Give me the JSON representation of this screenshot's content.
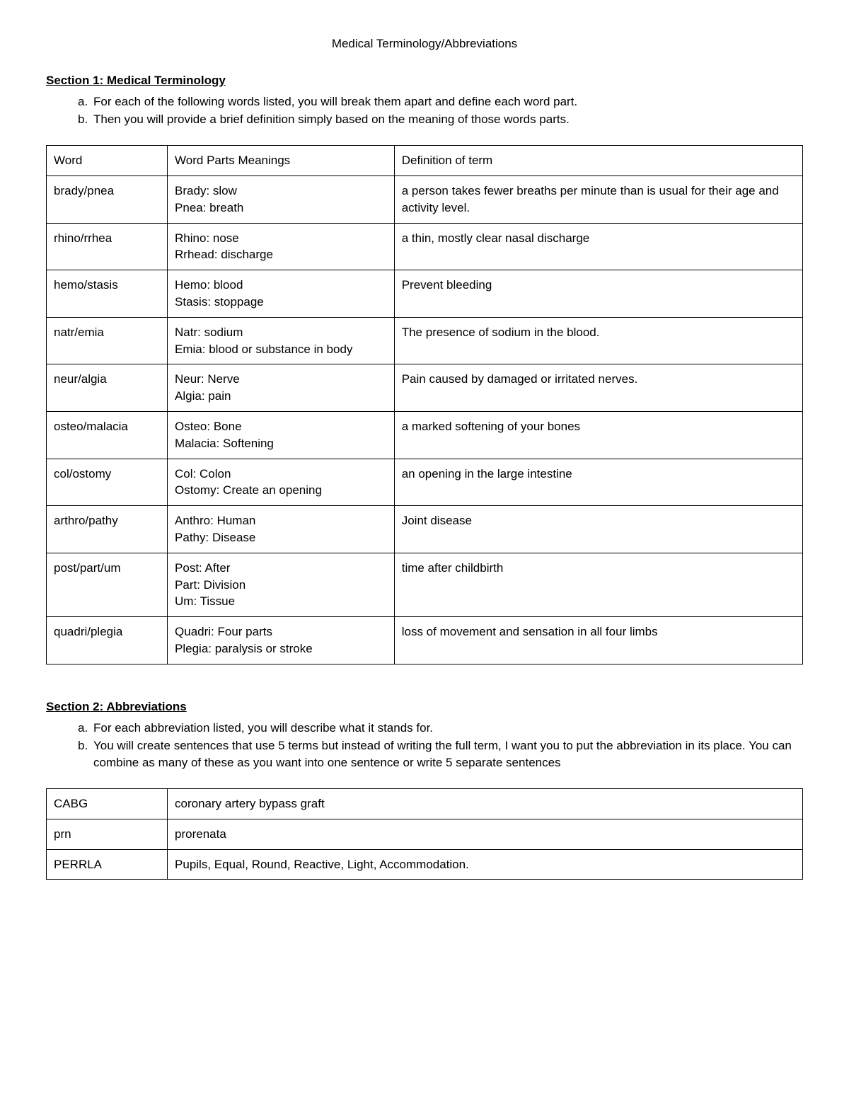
{
  "page_title": "Medical Terminology/Abbreviations",
  "section1": {
    "heading": "Section 1: Medical Terminology",
    "instructions": [
      "For each of the following words listed, you will break them apart and define each word part.",
      "Then you will provide a brief definition simply based on the meaning of those words parts."
    ],
    "headers": {
      "col1": "Word",
      "col2": "Word Parts Meanings",
      "col3": "Definition of term"
    },
    "rows": [
      {
        "word": "brady/pnea",
        "parts": "Brady: slow\nPnea: breath",
        "definition": "a person takes fewer breaths per minute than is usual for their age and activity level."
      },
      {
        "word": "rhino/rrhea",
        "parts": "Rhino: nose\nRrhead: discharge",
        "definition": "a thin, mostly clear nasal discharge"
      },
      {
        "word": "hemo/stasis",
        "parts": "Hemo: blood\nStasis: stoppage",
        "definition": "Prevent bleeding"
      },
      {
        "word": "natr/emia",
        "parts": "Natr: sodium\nEmia: blood or substance in body",
        "definition": "The presence of sodium in the blood."
      },
      {
        "word": "neur/algia",
        "parts": "Neur: Nerve\nAlgia: pain",
        "definition": "Pain caused by damaged or irritated nerves."
      },
      {
        "word": "osteo/malacia",
        "parts": "Osteo: Bone\nMalacia: Softening",
        "definition": "a marked softening of your bones"
      },
      {
        "word": "col/ostomy",
        "parts": "Col: Colon\nOstomy: Create an opening",
        "definition": "an opening in the large intestine"
      },
      {
        "word": "arthro/pathy",
        "parts": "Anthro: Human\nPathy: Disease",
        "definition": "Joint disease"
      },
      {
        "word": "post/part/um",
        "parts": "Post: After\nPart: Division\nUm: Tissue",
        "definition": "time after childbirth"
      },
      {
        "word": "quadri/plegia",
        "parts": "Quadri: Four parts\nPlegia: paralysis or stroke",
        "definition": "loss of movement and sensation in all four limbs"
      }
    ]
  },
  "section2": {
    "heading": "Section 2: Abbreviations",
    "instructions": [
      "For each abbreviation listed, you will describe what it stands for.",
      "You will create sentences that use 5 terms but instead of writing the full term, I want you to put the abbreviation in its place. You can combine as many of these as you want into one sentence or write 5 separate sentences"
    ],
    "rows": [
      {
        "abbr": "CABG",
        "meaning": "coronary artery bypass graft"
      },
      {
        "abbr": "prn",
        "meaning": "prorenata"
      },
      {
        "abbr": "PERRLA",
        "meaning": "Pupils, Equal, Round, Reactive, Light, Accommodation."
      }
    ]
  }
}
